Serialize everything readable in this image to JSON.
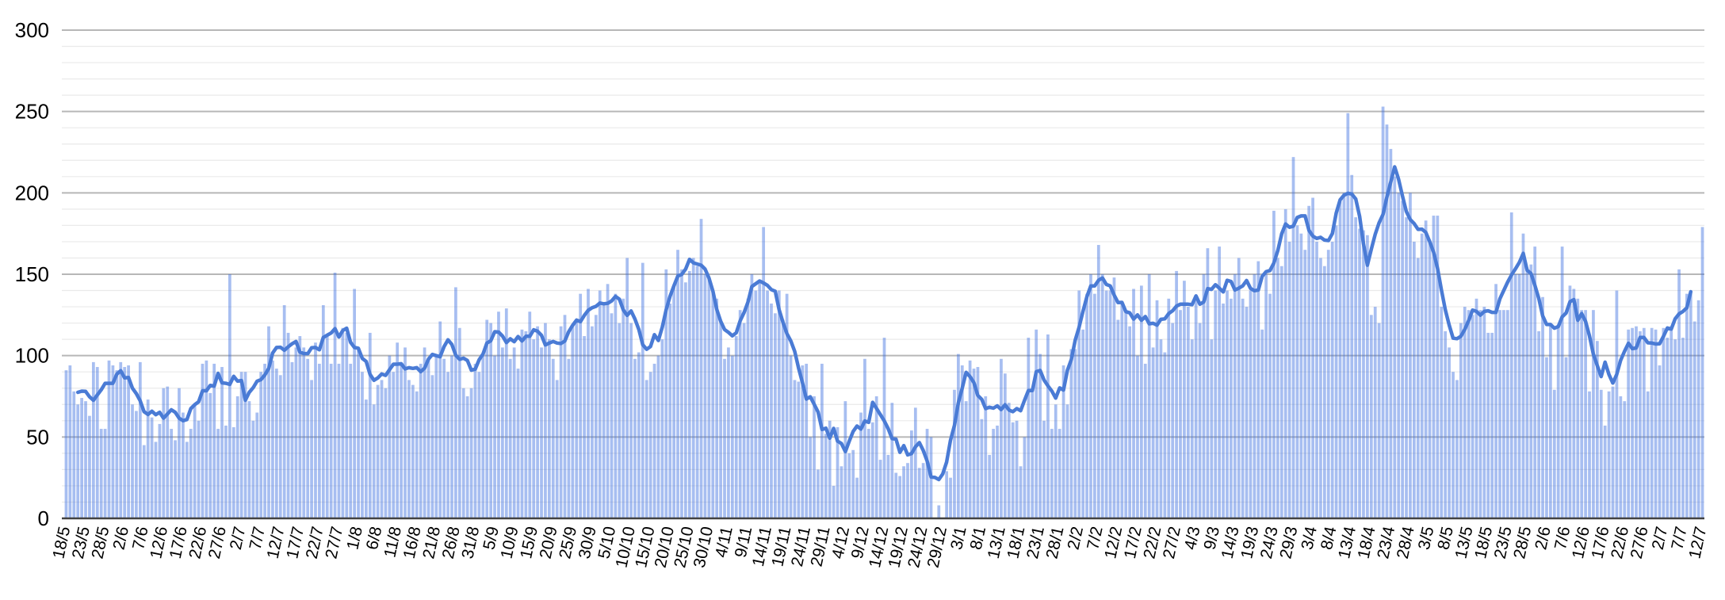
{
  "chart_data": {
    "type": "bar",
    "title": "",
    "xlabel": "",
    "ylabel": "",
    "grid": true,
    "legend_position": "none",
    "background_color": "#ffffff",
    "axis_line_color": "#424242",
    "major_gridline_color": "#b7b7b7",
    "minor_gridline_color": "#eaeaea",
    "y_axis": {
      "min": 0,
      "max": 300,
      "major_step": 50,
      "minor_step": 10,
      "tick_labels": [
        "0",
        "50",
        "100",
        "150",
        "200",
        "250",
        "300"
      ]
    },
    "x_axis": {
      "tick_label_every_n_points": 5,
      "tick_labels": [
        "18/5",
        "23/5",
        "28/5",
        "2/6",
        "7/6",
        "12/6",
        "17/6",
        "22/6",
        "27/6",
        "2/7",
        "7/7",
        "12/7",
        "17/7",
        "22/7",
        "27/7",
        "1/8",
        "6/8",
        "11/8",
        "16/8",
        "21/8",
        "26/8",
        "31/8",
        "5/9",
        "10/9",
        "15/9",
        "20/9",
        "25/9",
        "30/9",
        "5/10",
        "10/10",
        "15/10",
        "20/10",
        "25/10",
        "30/10",
        "4/11",
        "9/11",
        "14/11",
        "19/11",
        "24/11",
        "29/11",
        "4/12",
        "9/12",
        "14/12",
        "19/12",
        "24/12",
        "29/12",
        "3/1",
        "8/1",
        "13/1",
        "18/1",
        "23/1",
        "28/1",
        "2/2",
        "7/2",
        "12/2",
        "17/2",
        "22/2",
        "27/2",
        "4/3",
        "9/3",
        "14/3",
        "19/3",
        "24/3",
        "29/3",
        "3/4",
        "8/4",
        "13/4",
        "18/4",
        "23/4",
        "28/4",
        "3/5",
        "8/5",
        "13/5",
        "18/5",
        "23/5",
        "28/5",
        "2/6",
        "7/6",
        "12/6",
        "17/6",
        "22/6",
        "27/6",
        "2/7",
        "7/7",
        "12/7"
      ]
    },
    "series": [
      {
        "name": "daily-value-bars",
        "type": "bar",
        "color": "#a4c2f4",
        "values": [
          91,
          94,
          78,
          70,
          74,
          72,
          63,
          96,
          93,
          55,
          55,
          97,
          94,
          91,
          96,
          93,
          94,
          70,
          66,
          96,
          45,
          73,
          62,
          47,
          58,
          80,
          81,
          55,
          48,
          80,
          65,
          47,
          55,
          70,
          60,
          95,
          97,
          77,
          95,
          55,
          93,
          57,
          150,
          56,
          75,
          90,
          90,
          72,
          60,
          65,
          90,
          95,
          118,
          97,
          92,
          88,
          131,
          114,
          96,
          105,
          112,
          105,
          98,
          85,
          108,
          95,
          131,
          113,
          95,
          151,
          95,
          117,
          114,
          95,
          141,
          105,
          90,
          73,
          114,
          70,
          82,
          85,
          80,
          100,
          90,
          108,
          95,
          105,
          85,
          82,
          78,
          95,
          105,
          98,
          88,
          100,
          121,
          98,
          90,
          100,
          142,
          117,
          80,
          75,
          80,
          95,
          90,
          100,
          122,
          120,
          100,
          127,
          105,
          129,
          98,
          105,
          92,
          116,
          115,
          127,
          110,
          118,
          105,
          120,
          110,
          98,
          85,
          118,
          125,
          98,
          118,
          121,
          138,
          112,
          141,
          118,
          125,
          140,
          132,
          144,
          126,
          138,
          120,
          135,
          160,
          120,
          98,
          102,
          157,
          85,
          90,
          95,
          100,
          110,
          153,
          132,
          142,
          165,
          153,
          145,
          152,
          160,
          155,
          184,
          150,
          148,
          140,
          135,
          122,
          98,
          105,
          100,
          112,
          128,
          120,
          135,
          150,
          140,
          145,
          179,
          140,
          132,
          126,
          140,
          122,
          138,
          100,
          85,
          84,
          94,
          95,
          50,
          75,
          30,
          95,
          52,
          60,
          20,
          56,
          32,
          72,
          40,
          42,
          25,
          65,
          98,
          55,
          59,
          75,
          36,
          111,
          39,
          71,
          28,
          26,
          32,
          34,
          54,
          68,
          31,
          34,
          55,
          50,
          0,
          8,
          0,
          29,
          25,
          79,
          101,
          94,
          72,
          97,
          92,
          93,
          61,
          75,
          39,
          55,
          57,
          98,
          89,
          71,
          59,
          60,
          32,
          50,
          111,
          80,
          116,
          101,
          60,
          113,
          55,
          70,
          55,
          94,
          70,
          104,
          104,
          140,
          116,
          138,
          150,
          138,
          168,
          150,
          140,
          140,
          148,
          122,
          132,
          128,
          118,
          141,
          100,
          143,
          95,
          150,
          105,
          134,
          110,
          102,
          135,
          120,
          152,
          128,
          146,
          130,
          110,
          135,
          120,
          150,
          166,
          110,
          140,
          167,
          132,
          140,
          135,
          150,
          160,
          135,
          130,
          140,
          150,
          158,
          116,
          150,
          138,
          189,
          160,
          155,
          190,
          170,
          222,
          180,
          175,
          165,
          192,
          197,
          170,
          160,
          155,
          165,
          170,
          180,
          195,
          200,
          249,
          211,
          185,
          178,
          177,
          174,
          125,
          130,
          120,
          253,
          242,
          227,
          210,
          200,
          195,
          185,
          200,
          170,
          160,
          175,
          183,
          170,
          186,
          186,
          130,
          115,
          105,
          90,
          85,
          120,
          130,
          128,
          125,
          135,
          128,
          130,
          114,
          114,
          144,
          128,
          128,
          128,
          188,
          150,
          150,
          175,
          154,
          156,
          167,
          115,
          136,
          99,
          119,
          79,
          119,
          167,
          99,
          143,
          141,
          135,
          128,
          128,
          78,
          128,
          109,
          79,
          57,
          78,
          81,
          140,
          75,
          72,
          116,
          117,
          118,
          115,
          117,
          78,
          117,
          116,
          94,
          117,
          111,
          118,
          110,
          153,
          111,
          138,
          139,
          121,
          134,
          179
        ]
      },
      {
        "name": "moving-average-line",
        "type": "line",
        "color": "#4a7bd5",
        "derivation": "7-day centered moving average of daily-value-bars"
      }
    ]
  },
  "layout_note": "bar chart with smoothed moving-average overlay, y axis 0-300, daily bars labeled every 5 days"
}
